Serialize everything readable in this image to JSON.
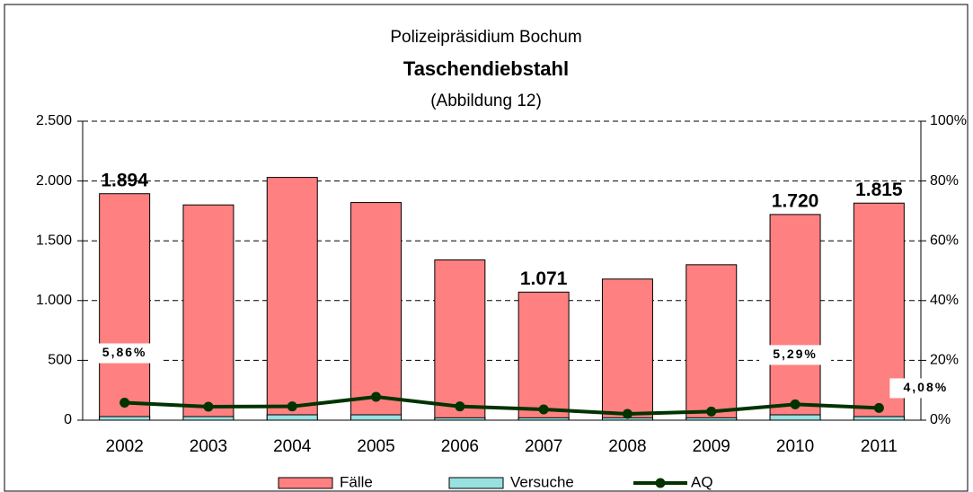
{
  "chart_data": {
    "type": "bar",
    "title": "Taschendiebstahl",
    "supertitle": "Polizeipräsidium Bochum",
    "subtitle": "(Abbildung 12)",
    "categories": [
      "2002",
      "2003",
      "2004",
      "2005",
      "2006",
      "2007",
      "2008",
      "2009",
      "2010",
      "2011"
    ],
    "series": [
      {
        "name": "Fälle",
        "color": "#ff8080",
        "values": [
          1894,
          1800,
          2030,
          1820,
          1340,
          1071,
          1180,
          1300,
          1720,
          1815
        ],
        "value_labels": [
          "1.894",
          null,
          null,
          null,
          null,
          "1.071",
          null,
          null,
          "1.720",
          "1.815"
        ]
      },
      {
        "name": "Versuche",
        "color": "#99e0e0",
        "values": [
          30,
          30,
          45,
          45,
          20,
          20,
          20,
          20,
          45,
          30
        ]
      },
      {
        "name": "AQ",
        "type": "line",
        "axis": "y2",
        "color": "#003300",
        "values": [
          5.86,
          4.5,
          4.6,
          7.8,
          4.6,
          3.6,
          2.1,
          2.9,
          5.29,
          4.08
        ],
        "value_labels": [
          "5,86%",
          null,
          null,
          null,
          null,
          null,
          null,
          null,
          "5,29%",
          "4,08%"
        ]
      }
    ],
    "ylim": [
      0,
      2500
    ],
    "yticks": [
      0,
      500,
      {
        "value": 1000,
        "label": "1.000"
      },
      {
        "value": 1500,
        "label": "1.500"
      },
      {
        "value": 2000,
        "label": "2.000"
      },
      {
        "value": 2500,
        "label": "2.500"
      }
    ],
    "y2lim": [
      0,
      100
    ],
    "y2ticks": [
      {
        "value": 0,
        "label": "0%"
      },
      {
        "value": 20,
        "label": "20%"
      },
      {
        "value": 40,
        "label": "40%"
      },
      {
        "value": 60,
        "label": "60%"
      },
      {
        "value": 80,
        "label": "80%"
      },
      {
        "value": 100,
        "label": "100%"
      }
    ],
    "grid": true
  }
}
